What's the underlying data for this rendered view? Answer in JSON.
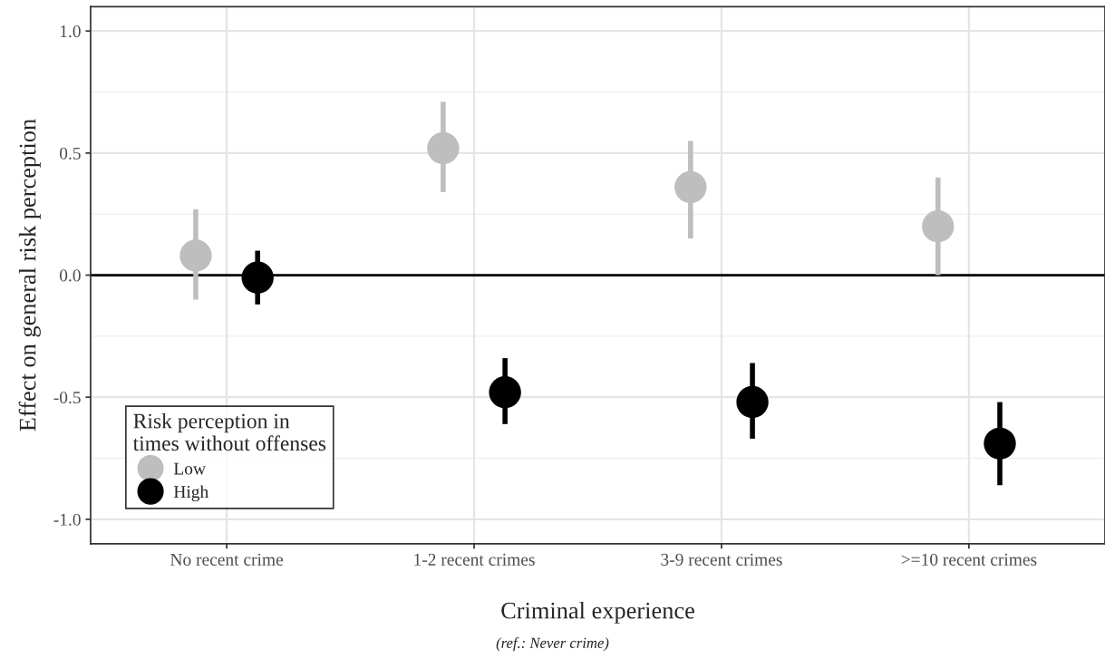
{
  "chart_data": {
    "type": "scatter",
    "xlabel": "Criminal experience",
    "ylabel": "Effect on general risk perception",
    "legend_title": "Risk perception in\ntimes without offenses",
    "categories": [
      "No recent crime",
      "1-2 recent crimes",
      "3-9 recent crimes",
      ">=10 recent crimes"
    ],
    "series": [
      {
        "name": "Low",
        "color": "#bebebe",
        "values": [
          0.08,
          0.52,
          0.36,
          0.2
        ],
        "errors": [
          [
            -0.1,
            0.27
          ],
          [
            0.34,
            0.71
          ],
          [
            0.15,
            0.55
          ],
          [
            0.0,
            0.4
          ]
        ]
      },
      {
        "name": "High",
        "color": "#000000",
        "values": [
          -0.01,
          -0.48,
          -0.52,
          -0.69
        ],
        "errors": [
          [
            -0.12,
            0.1
          ],
          [
            -0.61,
            -0.34
          ],
          [
            -0.67,
            -0.36
          ],
          [
            -0.86,
            -0.52
          ]
        ]
      }
    ],
    "ylim": [
      -1.1,
      1.1
    ],
    "yticks": [
      {
        "value": -1.0,
        "label": "-1.0"
      },
      {
        "value": -0.5,
        "label": "-0.5"
      },
      {
        "value": 0.0,
        "label": "0.0"
      },
      {
        "value": 0.5,
        "label": "0.5"
      },
      {
        "value": 1.0,
        "label": "1.0"
      }
    ],
    "ref_lines": [
      {
        "axis": "y",
        "value": 0,
        "color": "#000000"
      }
    ],
    "grid": true,
    "legend": "bottom left",
    "marker": "circle",
    "annotations": [
      "(ref.: Never crime)"
    ]
  }
}
